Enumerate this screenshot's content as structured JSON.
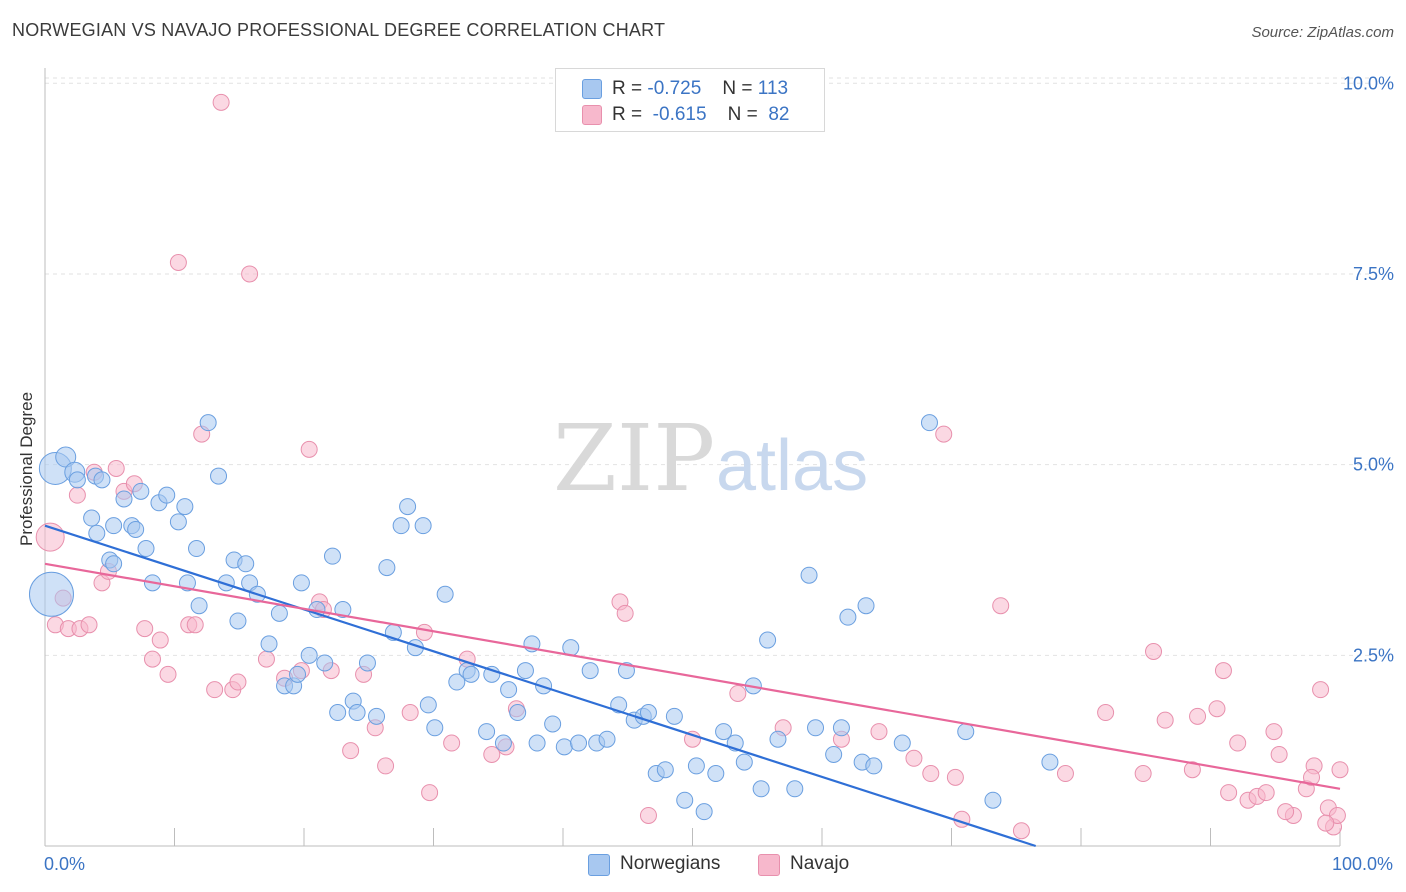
{
  "title": "NORWEGIAN VS NAVAJO PROFESSIONAL DEGREE CORRELATION CHART",
  "source": "Source: ZipAtlas.com",
  "legend": {
    "rows": [
      {
        "r_label": "R =",
        "r_value": "-0.725",
        "n_label": "N =",
        "n_value": "113",
        "color": "#a8c8f0"
      },
      {
        "r_label": "R =",
        "r_value": "-0.615",
        "n_label": "N =",
        "n_value": "82",
        "color": "#f7b8cc"
      }
    ]
  },
  "bottom_legend": [
    {
      "label": "Norwegians",
      "color": "#a8c8f0"
    },
    {
      "label": "Navajo",
      "color": "#f7b8cc"
    }
  ],
  "colors": {
    "norwegian_fill": "#a8c8f0",
    "norwegian_stroke": "#6a9fe0",
    "norwegian_line": "#2f6fd6",
    "navajo_fill": "#f7b8cc",
    "navajo_stroke": "#e890ad",
    "navajo_line": "#e8679a",
    "tick_label": "#3b74c4"
  },
  "chart_data": {
    "type": "scatter",
    "title": "NORWEGIAN VS NAVAJO PROFESSIONAL DEGREE CORRELATION CHART",
    "xlabel": "",
    "ylabel": "Professional Degree",
    "xlim": [
      0,
      100
    ],
    "ylim": [
      0,
      10.2
    ],
    "x_tick_labels": [
      "0.0%",
      "100.0%"
    ],
    "y_ticks": [
      2.5,
      5.0,
      7.5,
      10.0
    ],
    "y_tick_labels": [
      "2.5%",
      "5.0%",
      "7.5%",
      "10.0%"
    ],
    "grid": true,
    "legend_position": "top-center",
    "watermark": {
      "part1": "ZIP",
      "part2": "atlas"
    },
    "series": [
      {
        "name": "Norwegians",
        "r": -0.725,
        "n": 113,
        "trend": {
          "x": [
            0,
            76.5
          ],
          "y": [
            4.2,
            0.0
          ]
        },
        "points": [
          [
            0.5,
            3.3,
            22
          ],
          [
            0.8,
            4.95,
            16
          ],
          [
            1.6,
            5.1,
            10
          ],
          [
            2.3,
            4.9,
            10
          ],
          [
            2.5,
            4.8,
            8
          ],
          [
            3.6,
            4.3,
            8
          ],
          [
            4.0,
            4.1,
            8
          ],
          [
            3.9,
            4.85,
            8
          ],
          [
            4.4,
            4.8,
            8
          ],
          [
            5.3,
            4.2,
            8
          ],
          [
            6.1,
            4.55,
            8
          ],
          [
            6.7,
            4.2,
            8
          ],
          [
            5.0,
            3.75,
            8
          ],
          [
            5.3,
            3.7,
            8
          ],
          [
            7.0,
            4.15,
            8
          ],
          [
            7.4,
            4.65,
            8
          ],
          [
            7.8,
            3.9,
            8
          ],
          [
            8.3,
            3.45,
            8
          ],
          [
            8.8,
            4.5,
            8
          ],
          [
            9.4,
            4.6,
            8
          ],
          [
            10.3,
            4.25,
            8
          ],
          [
            10.8,
            4.45,
            8
          ],
          [
            11.0,
            3.45,
            8
          ],
          [
            11.7,
            3.9,
            8
          ],
          [
            11.9,
            3.15,
            8
          ],
          [
            12.6,
            5.55,
            8
          ],
          [
            13.4,
            4.85,
            8
          ],
          [
            14.0,
            3.45,
            8
          ],
          [
            14.6,
            3.75,
            8
          ],
          [
            14.9,
            2.95,
            8
          ],
          [
            15.5,
            3.7,
            8
          ],
          [
            15.8,
            3.45,
            8
          ],
          [
            16.4,
            3.3,
            8
          ],
          [
            17.3,
            2.65,
            8
          ],
          [
            18.1,
            3.05,
            8
          ],
          [
            18.5,
            2.1,
            8
          ],
          [
            19.2,
            2.1,
            8
          ],
          [
            19.5,
            2.25,
            8
          ],
          [
            19.8,
            3.45,
            8
          ],
          [
            20.4,
            2.5,
            8
          ],
          [
            21.0,
            3.1,
            8
          ],
          [
            21.6,
            2.4,
            8
          ],
          [
            22.2,
            3.8,
            8
          ],
          [
            22.6,
            1.75,
            8
          ],
          [
            23.0,
            3.1,
            8
          ],
          [
            23.8,
            1.9,
            8
          ],
          [
            24.1,
            1.75,
            8
          ],
          [
            24.9,
            2.4,
            8
          ],
          [
            25.6,
            1.7,
            8
          ],
          [
            26.4,
            3.65,
            8
          ],
          [
            26.9,
            2.8,
            8
          ],
          [
            27.5,
            4.2,
            8
          ],
          [
            28.0,
            4.45,
            8
          ],
          [
            28.6,
            2.6,
            8
          ],
          [
            29.2,
            4.2,
            8
          ],
          [
            29.6,
            1.85,
            8
          ],
          [
            30.1,
            1.55,
            8
          ],
          [
            30.9,
            3.3,
            8
          ],
          [
            31.8,
            2.15,
            8
          ],
          [
            32.6,
            2.3,
            8
          ],
          [
            32.9,
            2.25,
            8
          ],
          [
            34.1,
            1.5,
            8
          ],
          [
            34.5,
            2.25,
            8
          ],
          [
            35.4,
            1.35,
            8
          ],
          [
            35.8,
            2.05,
            8
          ],
          [
            36.5,
            1.75,
            8
          ],
          [
            37.1,
            2.3,
            8
          ],
          [
            37.6,
            2.65,
            8
          ],
          [
            38.0,
            1.35,
            8
          ],
          [
            38.5,
            2.1,
            8
          ],
          [
            39.2,
            1.6,
            8
          ],
          [
            40.1,
            1.3,
            8
          ],
          [
            40.6,
            2.6,
            8
          ],
          [
            41.2,
            1.35,
            8
          ],
          [
            42.1,
            2.3,
            8
          ],
          [
            42.6,
            1.35,
            8
          ],
          [
            43.4,
            1.4,
            8
          ],
          [
            44.3,
            1.85,
            8
          ],
          [
            44.9,
            2.3,
            8
          ],
          [
            45.5,
            1.65,
            8
          ],
          [
            46.2,
            1.7,
            8
          ],
          [
            46.6,
            1.75,
            8
          ],
          [
            47.2,
            0.95,
            8
          ],
          [
            47.9,
            1.0,
            8
          ],
          [
            48.6,
            1.7,
            8
          ],
          [
            49.4,
            0.6,
            8
          ],
          [
            50.3,
            1.05,
            8
          ],
          [
            50.9,
            0.45,
            8
          ],
          [
            51.8,
            0.95,
            8
          ],
          [
            52.4,
            1.5,
            8
          ],
          [
            53.3,
            1.35,
            8
          ],
          [
            54.0,
            1.1,
            8
          ],
          [
            54.7,
            2.1,
            8
          ],
          [
            55.3,
            0.75,
            8
          ],
          [
            55.8,
            2.7,
            8
          ],
          [
            56.6,
            1.4,
            8
          ],
          [
            57.9,
            0.75,
            8
          ],
          [
            59.0,
            3.55,
            8
          ],
          [
            59.5,
            1.55,
            8
          ],
          [
            60.9,
            1.2,
            8
          ],
          [
            61.5,
            1.55,
            8
          ],
          [
            62.0,
            3.0,
            8
          ],
          [
            63.1,
            1.1,
            8
          ],
          [
            63.4,
            3.15,
            8
          ],
          [
            64.0,
            1.05,
            8
          ],
          [
            66.2,
            1.35,
            8
          ],
          [
            68.3,
            5.55,
            8
          ],
          [
            71.1,
            1.5,
            8
          ],
          [
            73.2,
            0.6,
            8
          ],
          [
            77.6,
            1.1,
            8
          ]
        ]
      },
      {
        "name": "Navajo",
        "r": -0.615,
        "n": 82,
        "trend": {
          "x": [
            0,
            100
          ],
          "y": [
            3.7,
            0.75
          ]
        },
        "points": [
          [
            0.4,
            4.05,
            14
          ],
          [
            0.8,
            2.9,
            8
          ],
          [
            1.4,
            3.25,
            8
          ],
          [
            1.8,
            2.85,
            8
          ],
          [
            2.5,
            4.6,
            8
          ],
          [
            2.7,
            2.85,
            8
          ],
          [
            3.4,
            2.9,
            8
          ],
          [
            3.8,
            4.9,
            8
          ],
          [
            4.4,
            3.45,
            8
          ],
          [
            4.9,
            3.6,
            8
          ],
          [
            5.5,
            4.95,
            8
          ],
          [
            6.1,
            4.65,
            8
          ],
          [
            6.9,
            4.75,
            8
          ],
          [
            7.7,
            2.85,
            8
          ],
          [
            8.3,
            2.45,
            8
          ],
          [
            8.9,
            2.7,
            8
          ],
          [
            9.5,
            2.25,
            8
          ],
          [
            10.3,
            7.65,
            8
          ],
          [
            11.1,
            2.9,
            8
          ],
          [
            11.6,
            2.9,
            8
          ],
          [
            12.1,
            5.4,
            8
          ],
          [
            13.1,
            2.05,
            8
          ],
          [
            13.6,
            9.75,
            8
          ],
          [
            14.5,
            2.05,
            8
          ],
          [
            14.9,
            2.15,
            8
          ],
          [
            15.8,
            7.5,
            8
          ],
          [
            17.1,
            2.45,
            8
          ],
          [
            18.5,
            2.2,
            8
          ],
          [
            19.8,
            2.3,
            8
          ],
          [
            20.4,
            5.2,
            8
          ],
          [
            21.2,
            3.2,
            8
          ],
          [
            21.5,
            3.1,
            8
          ],
          [
            22.1,
            2.3,
            8
          ],
          [
            23.6,
            1.25,
            8
          ],
          [
            24.6,
            2.25,
            8
          ],
          [
            25.5,
            1.55,
            8
          ],
          [
            26.3,
            1.05,
            8
          ],
          [
            28.2,
            1.75,
            8
          ],
          [
            29.3,
            2.8,
            8
          ],
          [
            29.7,
            0.7,
            8
          ],
          [
            31.4,
            1.35,
            8
          ],
          [
            32.6,
            2.45,
            8
          ],
          [
            34.5,
            1.2,
            8
          ],
          [
            35.6,
            1.3,
            8
          ],
          [
            36.4,
            1.8,
            8
          ],
          [
            44.4,
            3.2,
            8
          ],
          [
            44.8,
            3.05,
            8
          ],
          [
            46.6,
            0.4,
            8
          ],
          [
            50.0,
            1.4,
            8
          ],
          [
            53.5,
            2.0,
            8
          ],
          [
            57.0,
            1.55,
            8
          ],
          [
            61.5,
            1.4,
            8
          ],
          [
            64.4,
            1.5,
            8
          ],
          [
            67.1,
            1.15,
            8
          ],
          [
            68.4,
            0.95,
            8
          ],
          [
            69.4,
            5.4,
            8
          ],
          [
            70.3,
            0.9,
            8
          ],
          [
            70.8,
            0.35,
            8
          ],
          [
            73.8,
            3.15,
            8
          ],
          [
            75.4,
            0.2,
            8
          ],
          [
            78.8,
            0.95,
            8
          ],
          [
            81.9,
            1.75,
            8
          ],
          [
            84.8,
            0.95,
            8
          ],
          [
            85.6,
            2.55,
            8
          ],
          [
            86.5,
            1.65,
            8
          ],
          [
            88.6,
            1.0,
            8
          ],
          [
            89.0,
            1.7,
            8
          ],
          [
            90.5,
            1.8,
            8
          ],
          [
            91.0,
            2.3,
            8
          ],
          [
            91.4,
            0.7,
            8
          ],
          [
            92.1,
            1.35,
            8
          ],
          [
            92.9,
            0.6,
            8
          ],
          [
            93.6,
            0.65,
            8
          ],
          [
            94.3,
            0.7,
            8
          ],
          [
            94.9,
            1.5,
            8
          ],
          [
            95.3,
            1.2,
            8
          ],
          [
            96.4,
            0.4,
            8
          ],
          [
            97.4,
            0.75,
            8
          ],
          [
            98.0,
            1.05,
            8
          ],
          [
            98.5,
            2.05,
            8
          ],
          [
            99.1,
            0.5,
            8
          ],
          [
            99.5,
            0.25,
            8
          ],
          [
            99.8,
            0.4,
            8
          ],
          [
            100.0,
            1.0,
            8
          ],
          [
            97.8,
            0.9,
            8
          ],
          [
            95.8,
            0.45,
            8
          ],
          [
            98.9,
            0.3,
            8
          ]
        ]
      }
    ]
  }
}
